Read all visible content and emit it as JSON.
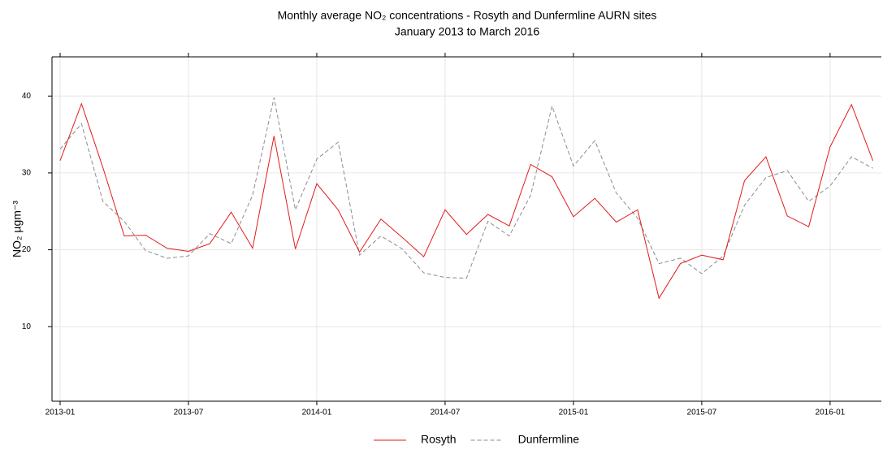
{
  "chart_data": {
    "type": "line",
    "title": "Monthly average NO₂ concentrations - Rosyth and Dunfermline AURN sites",
    "subtitle": "January 2013 to March 2016",
    "y_label": "NO₂ µgm⁻³",
    "x": [
      "2013-01",
      "2013-02",
      "2013-03",
      "2013-04",
      "2013-05",
      "2013-06",
      "2013-07",
      "2013-08",
      "2013-09",
      "2013-10",
      "2013-11",
      "2013-12",
      "2014-01",
      "2014-02",
      "2014-03",
      "2014-04",
      "2014-05",
      "2014-06",
      "2014-07",
      "2014-08",
      "2014-09",
      "2014-10",
      "2014-11",
      "2014-12",
      "2015-01",
      "2015-02",
      "2015-03",
      "2015-04",
      "2015-05",
      "2015-06",
      "2015-07",
      "2015-08",
      "2015-09",
      "2015-10",
      "2015-11",
      "2015-12",
      "2016-01",
      "2016-02",
      "2016-03"
    ],
    "xticks": [
      "2013-01",
      "2013-07",
      "2014-01",
      "2014-07",
      "2015-01",
      "2015-07",
      "2016-01"
    ],
    "series": [
      {
        "name": "Rosyth",
        "color": "#e31a1c",
        "dash": "solid",
        "values": [
          31.6,
          39.0,
          30.7,
          21.8,
          21.9,
          20.2,
          19.8,
          20.8,
          24.9,
          20.2,
          34.8,
          20.1,
          28.6,
          25.2,
          19.7,
          24.0,
          21.6,
          19.1,
          25.2,
          22.0,
          24.6,
          23.1,
          31.1,
          29.5,
          24.3,
          26.7,
          23.6,
          25.2,
          13.7,
          18.2,
          19.3,
          18.7,
          29.0,
          32.1,
          24.4,
          23.0,
          33.4,
          38.9,
          31.6
        ]
      },
      {
        "name": "Dunfermline",
        "color": "#8c8c8c",
        "dash": "dashed",
        "values": [
          33.1,
          36.4,
          26.3,
          23.7,
          19.9,
          18.9,
          19.2,
          22.1,
          20.8,
          27.1,
          39.8,
          25.2,
          31.8,
          34.0,
          19.3,
          21.8,
          20.1,
          17.0,
          16.4,
          16.3,
          23.7,
          21.8,
          27.1,
          38.7,
          30.9,
          34.2,
          27.4,
          24.1,
          18.2,
          18.9,
          16.9,
          19.2,
          25.8,
          29.4,
          30.3,
          26.3,
          28.3,
          32.1,
          30.6
        ]
      }
    ],
    "ylim": [
      0.3,
      45.1
    ],
    "yticks": [
      10,
      20,
      30,
      40
    ],
    "grid": true,
    "legend": "bottom"
  }
}
